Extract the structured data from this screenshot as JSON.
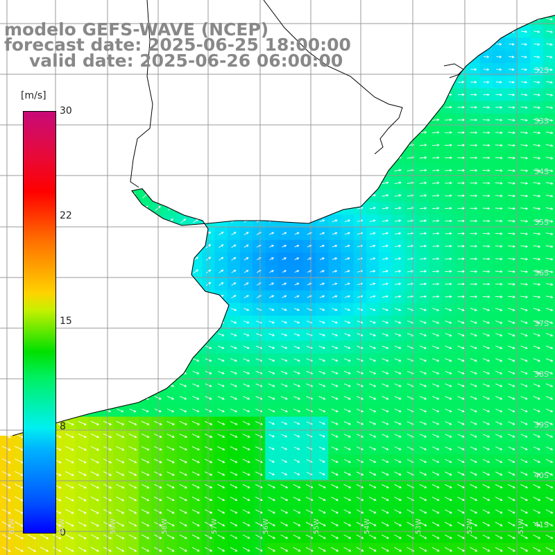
{
  "title": {
    "line1": "modelo GEFS-WAVE (NCEP)",
    "line2": "forecast date: 2025-06-25 18:00:00",
    "line3": "valid date: 2025-06-26 06:00:00"
  },
  "legend": {
    "unit": "[m/s]",
    "ticks": [
      "30",
      "22",
      "15",
      "8",
      "0"
    ],
    "tick_values": [
      30,
      22,
      15,
      8,
      0
    ],
    "range": [
      0,
      30
    ]
  },
  "lat_labels": [
    "32S",
    "33S",
    "34S",
    "35S",
    "36S",
    "37S",
    "38S",
    "39S",
    "40S",
    "41S"
  ],
  "lon_labels": [
    "61W",
    "60W",
    "59W",
    "58W",
    "57W",
    "56W",
    "55W",
    "54W",
    "53W",
    "52W",
    "51W"
  ],
  "colors": {
    "land": "#ffffff",
    "coast": "#000000",
    "grid": "#999999",
    "title": "#888888",
    "arrows": "#ffffff"
  }
}
